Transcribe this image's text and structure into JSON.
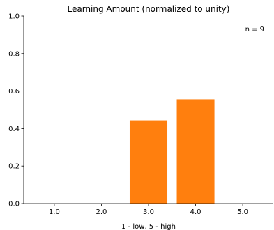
{
  "chart_data": {
    "type": "bar",
    "title": "Learning Amount (normalized to unity)",
    "xlabel": "1 - low, 5 - high",
    "ylabel": "",
    "categories": [
      "1.0",
      "2.0",
      "3.0",
      "4.0",
      "5.0"
    ],
    "x": [
      1,
      2,
      3,
      4,
      5
    ],
    "values": [
      0,
      0,
      0.444,
      0.556,
      0
    ],
    "xlim": [
      0.35,
      5.65
    ],
    "ylim": [
      0,
      1.0
    ],
    "yticks": [
      "0.0",
      "0.2",
      "0.4",
      "0.6",
      "0.8",
      "1.0"
    ],
    "annotation": "n = 9",
    "bar_color": "#ff7f0e",
    "grid": false,
    "legend": "none"
  }
}
